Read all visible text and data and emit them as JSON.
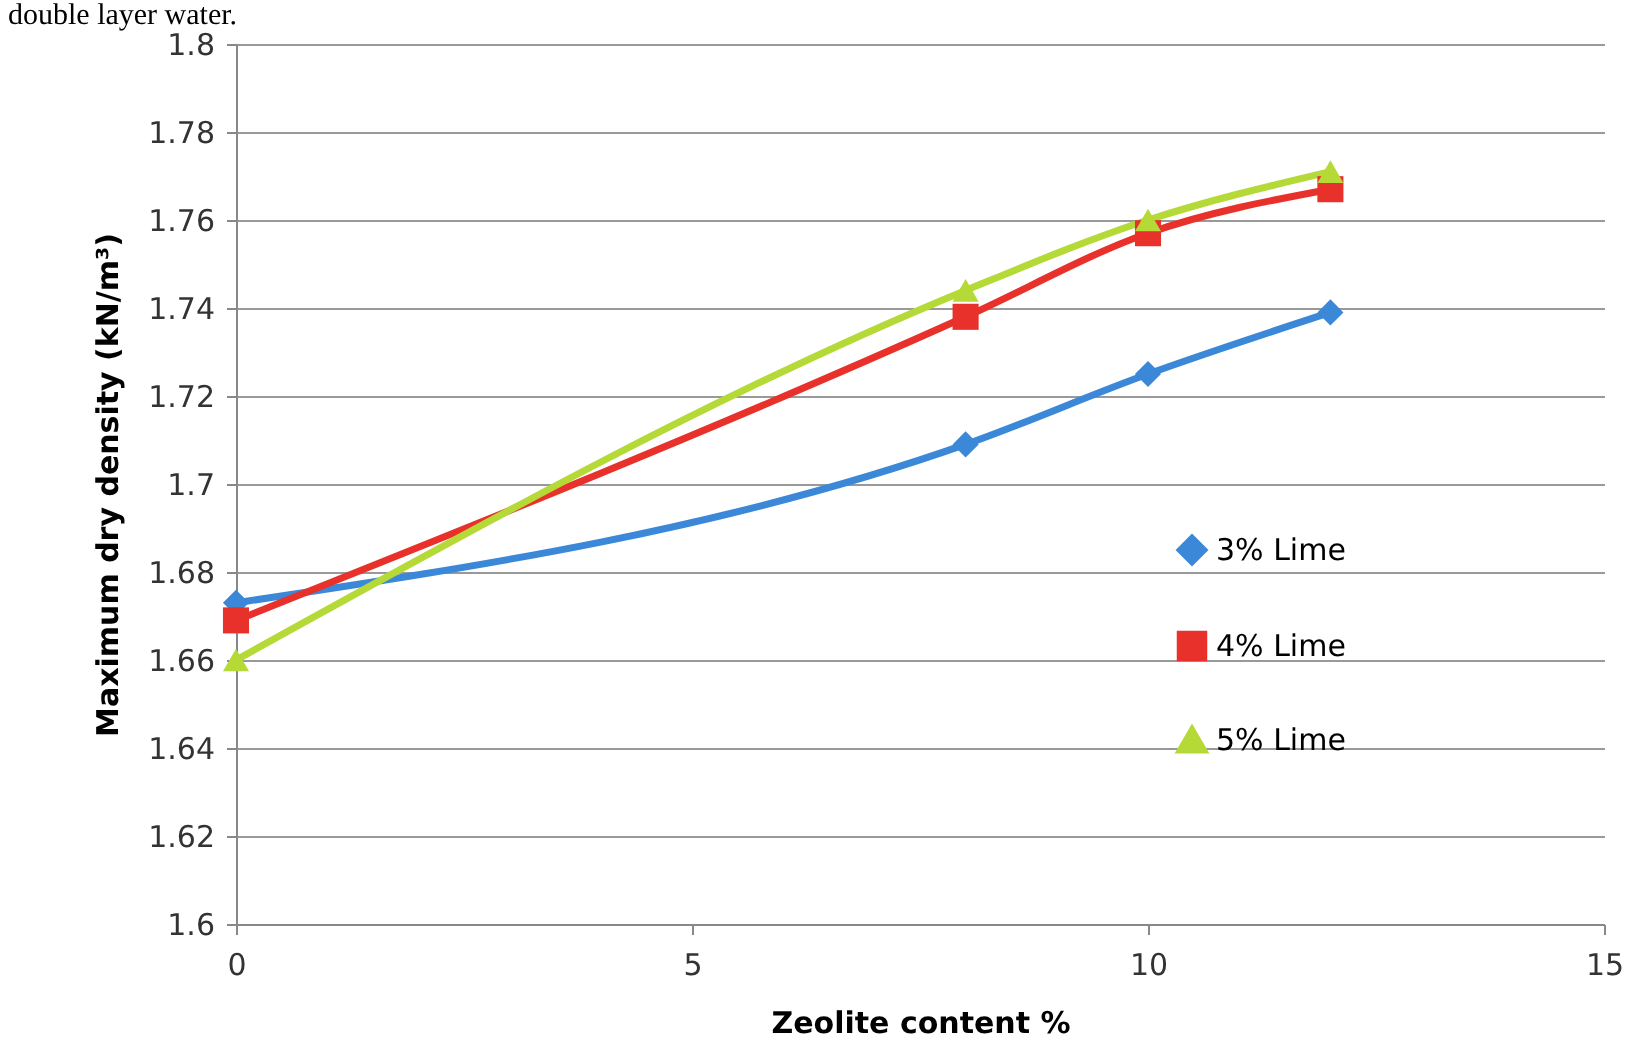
{
  "chart_data": {
    "type": "line",
    "xlabel": "Zeolite content %",
    "ylabel": "Maximum dry density (kN/m³)",
    "annotations": [
      "double layer water."
    ],
    "x": [
      0,
      8,
      10,
      12
    ],
    "series": [
      {
        "name": "3% Lime",
        "color": "#3b87d8",
        "marker": "diamond",
        "values": [
          1.673,
          1.709,
          1.725,
          1.739
        ]
      },
      {
        "name": "4% Lime",
        "color": "#e8312b",
        "marker": "square",
        "values": [
          1.669,
          1.738,
          1.757,
          1.767
        ]
      },
      {
        "name": "5% Lime",
        "color": "#b5d936",
        "marker": "triangle",
        "values": [
          1.66,
          1.744,
          1.76,
          1.771
        ]
      }
    ],
    "xlim": [
      0,
      15
    ],
    "xticks": [
      0,
      5,
      10,
      15
    ],
    "ylim": [
      1.6,
      1.8
    ],
    "yticks": [
      1.6,
      1.62,
      1.64,
      1.66,
      1.68,
      1.7,
      1.72,
      1.74,
      1.76,
      1.78,
      1.8
    ],
    "grid": "y",
    "legend": "right"
  }
}
